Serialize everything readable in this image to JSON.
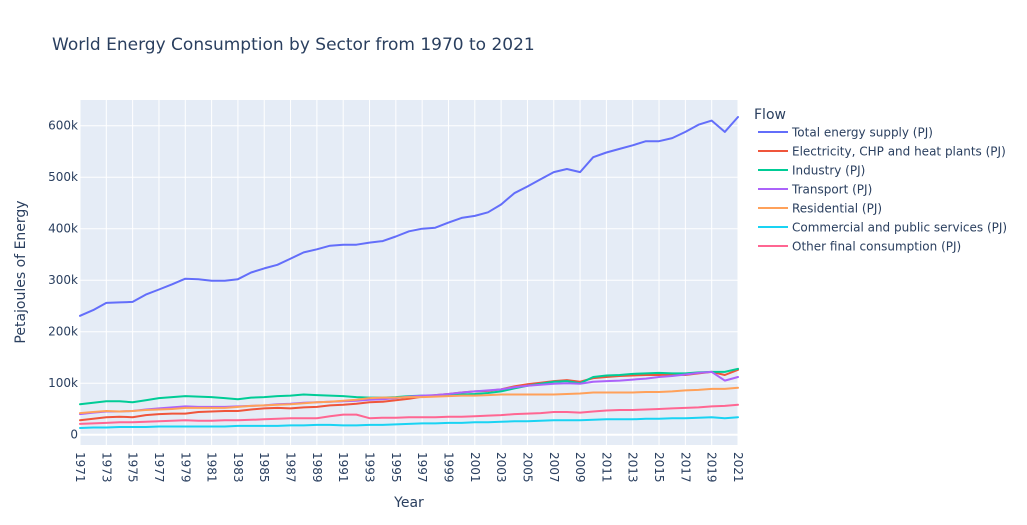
{
  "chart_data": {
    "type": "line",
    "title": "World Energy Consumption by Sector from 1970 to 2021",
    "xlabel": "Year",
    "ylabel": "Petajoules of Energy",
    "legend_title": "Flow",
    "legend_position": "right",
    "grid": true,
    "xlim": [
      1971,
      2021
    ],
    "ylim": [
      -20000,
      650000
    ],
    "x_ticks": [
      "1971",
      "1973",
      "1975",
      "1977",
      "1979",
      "1981",
      "1983",
      "1985",
      "1987",
      "1989",
      "1991",
      "1993",
      "1995",
      "1997",
      "1999",
      "2001",
      "2003",
      "2005",
      "2007",
      "2009",
      "2011",
      "2013",
      "2015",
      "2017",
      "2019",
      "2021"
    ],
    "y_ticks": [
      {
        "value": 0,
        "label": "0"
      },
      {
        "value": 100000,
        "label": "100k"
      },
      {
        "value": 200000,
        "label": "200k"
      },
      {
        "value": 300000,
        "label": "300k"
      },
      {
        "value": 400000,
        "label": "400k"
      },
      {
        "value": 500000,
        "label": "500k"
      },
      {
        "value": 600000,
        "label": "600k"
      }
    ],
    "x": [
      1971,
      1972,
      1973,
      1974,
      1975,
      1976,
      1977,
      1978,
      1979,
      1980,
      1981,
      1982,
      1983,
      1984,
      1985,
      1986,
      1987,
      1988,
      1989,
      1990,
      1991,
      1992,
      1993,
      1994,
      1995,
      1996,
      1997,
      1998,
      1999,
      2000,
      2001,
      2002,
      2003,
      2004,
      2005,
      2006,
      2007,
      2008,
      2009,
      2010,
      2011,
      2012,
      2013,
      2014,
      2015,
      2016,
      2017,
      2018,
      2019,
      2020,
      2021
    ],
    "series": [
      {
        "name": "Total energy supply (PJ)",
        "color": "#636efa",
        "values": [
          231000,
          242000,
          256000,
          257000,
          258000,
          272000,
          282000,
          292000,
          303000,
          302000,
          299000,
          299000,
          302000,
          315000,
          323000,
          330000,
          342000,
          354000,
          360000,
          367000,
          369000,
          369000,
          373000,
          376000,
          385000,
          395000,
          400000,
          402000,
          412000,
          421000,
          425000,
          432000,
          447000,
          469000,
          482000,
          496000,
          510000,
          516000,
          510000,
          539000,
          548000,
          555000,
          562000,
          570000,
          570000,
          576000,
          588000,
          602000,
          610000,
          588000,
          617000
        ]
      },
      {
        "name": "Electricity, CHP and heat plants (PJ)",
        "color": "#ef553b",
        "values": [
          28000,
          31000,
          34000,
          35000,
          34000,
          38000,
          40000,
          41000,
          41000,
          44000,
          45000,
          46000,
          46000,
          49000,
          51000,
          52000,
          51000,
          53000,
          54000,
          57000,
          58000,
          60000,
          63000,
          64000,
          67000,
          70000,
          74000,
          77000,
          79000,
          82000,
          84000,
          85000,
          88000,
          94000,
          98000,
          101000,
          104000,
          106000,
          103000,
          110000,
          112000,
          114000,
          115000,
          116000,
          116000,
          117000,
          116000,
          119000,
          122000,
          116000,
          126000
        ]
      },
      {
        "name": "Industry (PJ)",
        "color": "#00cc96",
        "values": [
          59000,
          62000,
          65000,
          65000,
          63000,
          67000,
          71000,
          73000,
          75000,
          74000,
          73000,
          71000,
          69000,
          72000,
          73000,
          75000,
          76000,
          78000,
          77000,
          76000,
          75000,
          73000,
          72000,
          72000,
          73000,
          75000,
          76000,
          76000,
          77000,
          78000,
          79000,
          81000,
          84000,
          90000,
          95000,
          99000,
          103000,
          104000,
          100000,
          112000,
          115000,
          116000,
          118000,
          119000,
          120000,
          119000,
          119000,
          121000,
          122000,
          122000,
          128000
        ]
      },
      {
        "name": "Transport (PJ)",
        "color": "#ab63fa",
        "values": [
          40000,
          43000,
          45000,
          45000,
          46000,
          49000,
          51000,
          53000,
          55000,
          54000,
          54000,
          54000,
          55000,
          56000,
          57000,
          59000,
          60000,
          62000,
          63000,
          64000,
          65000,
          66000,
          68000,
          69000,
          71000,
          74000,
          76000,
          77000,
          79000,
          82000,
          84000,
          86000,
          88000,
          92000,
          95000,
          97000,
          99000,
          100000,
          99000,
          103000,
          104000,
          105000,
          107000,
          109000,
          112000,
          114000,
          117000,
          120000,
          122000,
          105000,
          112000
        ]
      },
      {
        "name": "Residential (PJ)",
        "color": "#ffa15a",
        "values": [
          42000,
          44000,
          46000,
          45000,
          46000,
          48000,
          49000,
          50000,
          52000,
          52000,
          52000,
          52000,
          54000,
          56000,
          57000,
          58000,
          59000,
          61000,
          63000,
          64000,
          66000,
          68000,
          71000,
          72000,
          72000,
          73000,
          73000,
          74000,
          75000,
          76000,
          76000,
          77000,
          78000,
          78000,
          78000,
          78000,
          78000,
          79000,
          80000,
          82000,
          82000,
          82000,
          82000,
          83000,
          83000,
          84000,
          86000,
          87000,
          89000,
          89000,
          91000
        ]
      },
      {
        "name": "Commercial and public services (PJ)",
        "color": "#19d3f3",
        "values": [
          13000,
          14000,
          14000,
          15000,
          15000,
          15000,
          16000,
          16000,
          16000,
          16000,
          16000,
          16000,
          17000,
          17000,
          17000,
          17000,
          18000,
          18000,
          19000,
          19000,
          18000,
          18000,
          19000,
          19000,
          20000,
          21000,
          22000,
          22000,
          23000,
          23000,
          24000,
          24000,
          25000,
          26000,
          26000,
          27000,
          28000,
          28000,
          28000,
          29000,
          30000,
          30000,
          30000,
          31000,
          31000,
          32000,
          32000,
          33000,
          34000,
          32000,
          34000
        ]
      },
      {
        "name": "Other final consumption (PJ)",
        "color": "#ff6692",
        "values": [
          21000,
          22000,
          23000,
          24000,
          24000,
          25000,
          26000,
          27000,
          28000,
          27000,
          27000,
          28000,
          28000,
          29000,
          30000,
          31000,
          32000,
          32000,
          32000,
          36000,
          39000,
          39000,
          32000,
          33000,
          33000,
          34000,
          34000,
          34000,
          35000,
          35000,
          36000,
          37000,
          38000,
          40000,
          41000,
          42000,
          44000,
          44000,
          43000,
          45000,
          47000,
          48000,
          48000,
          49000,
          50000,
          51000,
          52000,
          53000,
          55000,
          56000,
          58000
        ]
      }
    ]
  }
}
